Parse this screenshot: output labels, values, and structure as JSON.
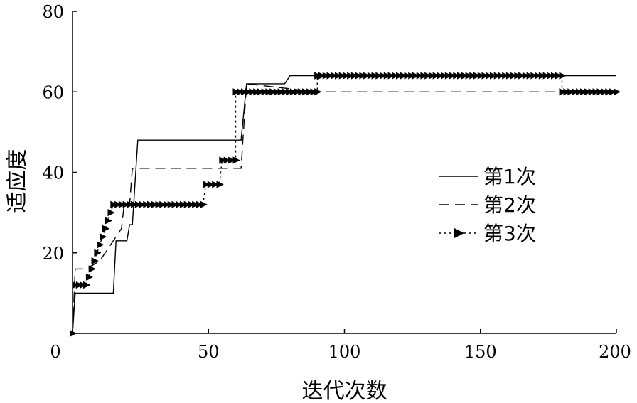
{
  "chart_data": {
    "type": "line",
    "title": "",
    "xlabel": "迭代次数",
    "ylabel": "适应度",
    "xlim": [
      0,
      200
    ],
    "ylim": [
      0,
      80
    ],
    "x_ticks": [
      "0",
      "50",
      "100",
      "150",
      "200"
    ],
    "x_tick_values": [
      0,
      50,
      100,
      150,
      200
    ],
    "y_ticks": [
      "20",
      "40",
      "60",
      "80"
    ],
    "y_tick_values": [
      20,
      40,
      60,
      80
    ],
    "grid": false,
    "legend_position": "right-middle",
    "series": [
      {
        "name": "第1次",
        "style": "solid",
        "marker": "none",
        "points": [
          [
            0,
            0
          ],
          [
            1,
            10
          ],
          [
            15,
            10
          ],
          [
            16,
            23
          ],
          [
            20,
            23
          ],
          [
            21,
            27
          ],
          [
            22,
            27
          ],
          [
            24,
            48
          ],
          [
            62,
            48
          ],
          [
            64,
            62
          ],
          [
            78,
            62
          ],
          [
            80,
            64
          ],
          [
            200,
            64
          ]
        ]
      },
      {
        "name": "第2次",
        "style": "dashed",
        "marker": "none",
        "points": [
          [
            0,
            0
          ],
          [
            1,
            16
          ],
          [
            5,
            16
          ],
          [
            10,
            18
          ],
          [
            18,
            26
          ],
          [
            19,
            32
          ],
          [
            21,
            32
          ],
          [
            22,
            41
          ],
          [
            62,
            41
          ],
          [
            64,
            62
          ],
          [
            90,
            60
          ],
          [
            200,
            60
          ]
        ]
      },
      {
        "name": "第3次",
        "style": "dotted",
        "marker": "triangle-right",
        "points": [
          [
            0,
            0
          ],
          [
            1,
            12
          ],
          [
            5,
            12
          ],
          [
            6,
            14
          ],
          [
            7,
            16
          ],
          [
            8,
            18
          ],
          [
            9,
            20
          ],
          [
            10,
            22
          ],
          [
            11,
            24
          ],
          [
            12,
            26
          ],
          [
            13,
            28
          ],
          [
            14,
            30
          ],
          [
            15,
            32
          ],
          [
            48,
            32
          ],
          [
            49,
            37
          ],
          [
            54,
            37
          ],
          [
            55,
            43
          ],
          [
            60,
            43
          ],
          [
            60,
            60
          ],
          [
            90,
            60
          ],
          [
            90,
            64
          ],
          [
            180,
            64
          ],
          [
            180,
            60
          ],
          [
            200,
            60
          ]
        ]
      }
    ]
  },
  "legend": [
    {
      "label": "第1次"
    },
    {
      "label": "第2次"
    },
    {
      "label": "第3次"
    }
  ]
}
